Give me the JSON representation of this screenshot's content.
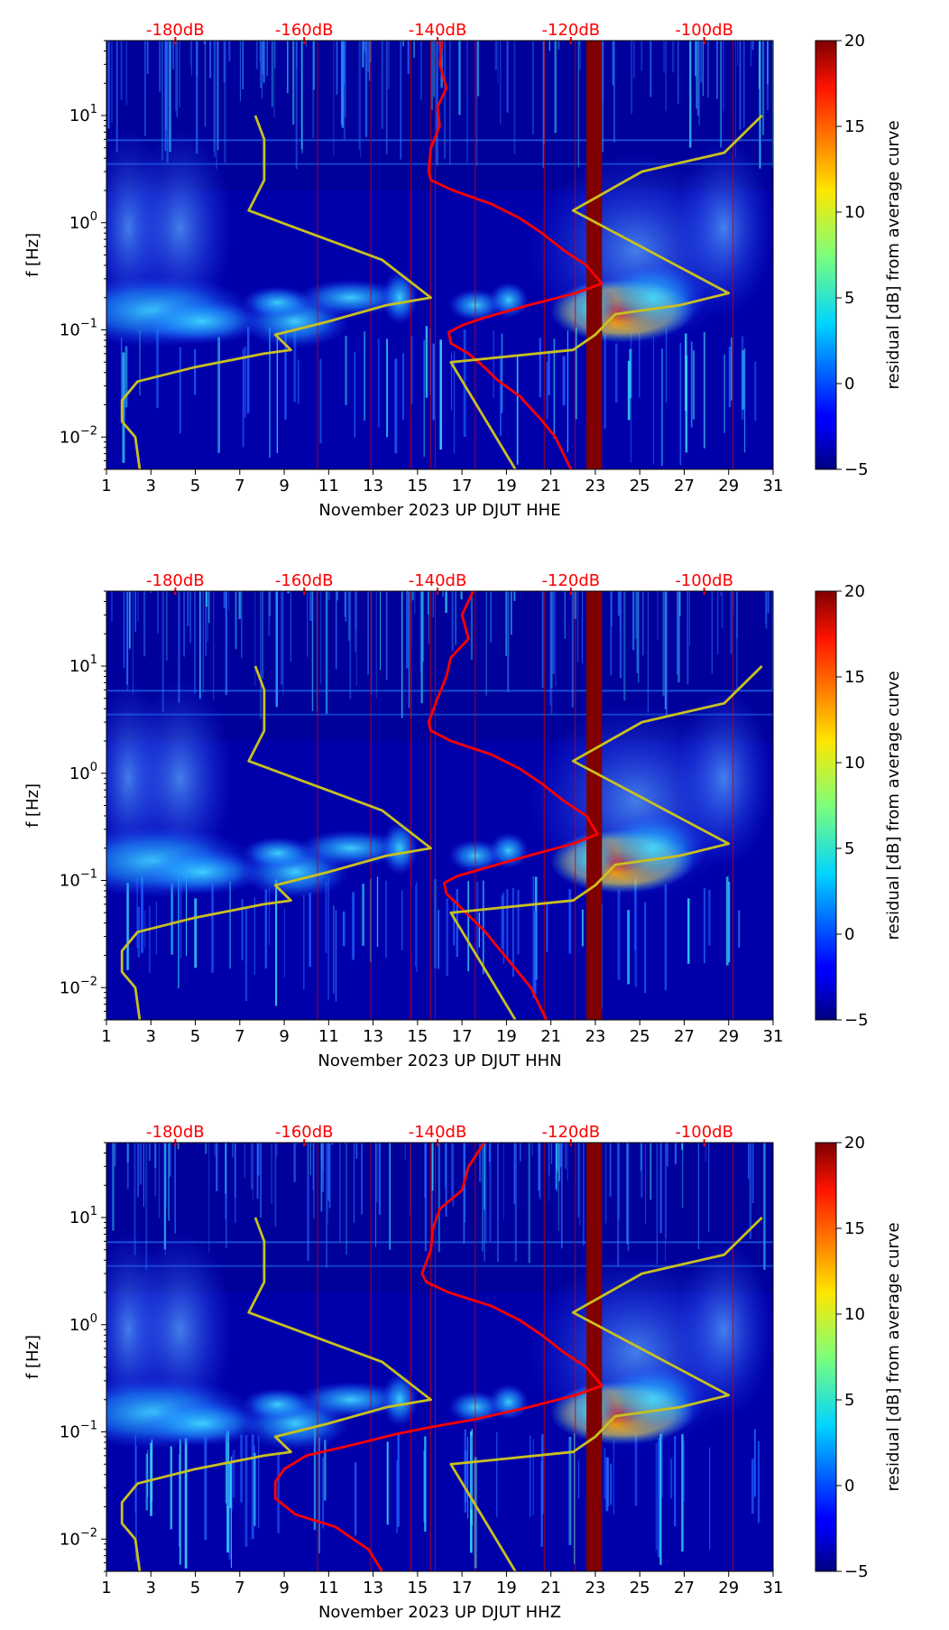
{
  "chart_data": [
    {
      "type": "heatmap",
      "title": "",
      "channel": "HHE",
      "xlabel": "November 2023 UP DJUT  HHE",
      "ylabel": "f [Hz]",
      "x_ticks": [
        "1",
        "3",
        "5",
        "7",
        "9",
        "11",
        "13",
        "15",
        "17",
        "19",
        "21",
        "23",
        "25",
        "27",
        "29",
        "31"
      ],
      "y_ticks": [
        {
          "value": 10,
          "label": "10",
          "exp": "1"
        },
        {
          "value": 1,
          "label": "10",
          "exp": "0"
        },
        {
          "value": 0.1,
          "label": "10",
          "exp": "−1"
        },
        {
          "value": 0.01,
          "label": "10",
          "exp": "−2"
        }
      ],
      "top_labels": [
        "-180dB",
        "-160dB",
        "-140dB",
        "-120dB",
        "-100dB"
      ],
      "top_label_positions": [
        4.1,
        9.9,
        15.9,
        21.9,
        27.9
      ],
      "xlim": [
        1,
        31
      ],
      "ylim": [
        0.005,
        50
      ],
      "colorbar": {
        "label": "residual [dB] from average curve",
        "ticks": [
          "−5",
          "0",
          "5",
          "10",
          "15",
          "20"
        ],
        "range": [
          -5,
          20
        ]
      },
      "dark_band_days": [
        22.6,
        23.3
      ],
      "red_line_days": [
        10.5,
        12.9,
        14.7,
        15.6,
        15.8,
        17.6,
        20.7,
        22.1,
        29.2
      ],
      "series": [
        {
          "name": "PSD curve",
          "color": "#ff0000",
          "points": [
            [
              16.1,
              50
            ],
            [
              16.0,
              30
            ],
            [
              16.3,
              18
            ],
            [
              15.9,
              12
            ],
            [
              16.0,
              8
            ],
            [
              15.6,
              5
            ],
            [
              15.5,
              3
            ],
            [
              15.6,
              2.5
            ],
            [
              16.6,
              2.0
            ],
            [
              18.3,
              1.5
            ],
            [
              19.6,
              1.1
            ],
            [
              20.6,
              0.8
            ],
            [
              21.6,
              0.55
            ],
            [
              22.6,
              0.4
            ],
            [
              23.3,
              0.27
            ],
            [
              22.1,
              0.22
            ],
            [
              20.0,
              0.17
            ],
            [
              18.0,
              0.13
            ],
            [
              17.0,
              0.11
            ],
            [
              16.4,
              0.095
            ],
            [
              16.5,
              0.075
            ],
            [
              17.3,
              0.06
            ],
            [
              18.0,
              0.045
            ],
            [
              18.6,
              0.034
            ],
            [
              19.6,
              0.024
            ],
            [
              20.5,
              0.015
            ],
            [
              21.2,
              0.01
            ],
            [
              21.9,
              0.005
            ]
          ]
        },
        {
          "name": "model curve",
          "color": "#c8c020",
          "points": [
            [
              7.7,
              10
            ],
            [
              8.1,
              6
            ],
            [
              8.1,
              2.5
            ],
            [
              7.4,
              1.3
            ],
            [
              13.4,
              0.45
            ],
            [
              15.6,
              0.2
            ],
            [
              13.6,
              0.17
            ],
            [
              11.0,
              0.12
            ],
            [
              8.6,
              0.09
            ],
            [
              9.3,
              0.065
            ],
            [
              8.1,
              0.06
            ],
            [
              5.0,
              0.045
            ],
            [
              2.4,
              0.033
            ],
            [
              1.7,
              0.022
            ],
            [
              1.7,
              0.014
            ],
            [
              2.3,
              0.01
            ],
            [
              2.5,
              0.005
            ]
          ]
        },
        {
          "name": "model curve 2",
          "color": "#c8c020",
          "points": [
            [
              30.5,
              10
            ],
            [
              28.8,
              4.5
            ],
            [
              25.1,
              3.0
            ],
            [
              22.0,
              1.3
            ],
            [
              29.0,
              0.22
            ],
            [
              26.8,
              0.17
            ],
            [
              23.9,
              0.14
            ],
            [
              23.0,
              0.09
            ],
            [
              22.0,
              0.065
            ],
            [
              16.5,
              0.05
            ],
            [
              19.4,
              0.005
            ]
          ]
        }
      ]
    },
    {
      "type": "heatmap",
      "title": "",
      "channel": "HHN",
      "xlabel": "November 2023 UP DJUT  HHN",
      "ylabel": "f [Hz]",
      "x_ticks": [
        "1",
        "3",
        "5",
        "7",
        "9",
        "11",
        "13",
        "15",
        "17",
        "19",
        "21",
        "23",
        "25",
        "27",
        "29",
        "31"
      ],
      "y_ticks": [
        {
          "value": 10,
          "label": "10",
          "exp": "1"
        },
        {
          "value": 1,
          "label": "10",
          "exp": "0"
        },
        {
          "value": 0.1,
          "label": "10",
          "exp": "−1"
        },
        {
          "value": 0.01,
          "label": "10",
          "exp": "−2"
        }
      ],
      "top_labels": [
        "-180dB",
        "-160dB",
        "-140dB",
        "-120dB",
        "-100dB"
      ],
      "top_label_positions": [
        4.1,
        9.9,
        15.9,
        21.9,
        27.9
      ],
      "xlim": [
        1,
        31
      ],
      "ylim": [
        0.005,
        50
      ],
      "colorbar": {
        "label": "residual [dB] from average curve",
        "ticks": [
          "−5",
          "0",
          "5",
          "10",
          "15",
          "20"
        ],
        "range": [
          -5,
          20
        ]
      },
      "dark_band_days": [
        22.6,
        23.3
      ],
      "red_line_days": [
        10.5,
        12.9,
        14.7,
        15.6,
        15.8,
        17.6,
        20.7,
        22.1,
        29.2
      ],
      "series": [
        {
          "name": "PSD curve",
          "color": "#ff0000",
          "points": [
            [
              17.5,
              50
            ],
            [
              17.0,
              30
            ],
            [
              17.3,
              18
            ],
            [
              16.5,
              12
            ],
            [
              16.3,
              8
            ],
            [
              15.9,
              5
            ],
            [
              15.5,
              3
            ],
            [
              15.6,
              2.5
            ],
            [
              16.5,
              2.0
            ],
            [
              18.3,
              1.5
            ],
            [
              19.6,
              1.1
            ],
            [
              20.6,
              0.8
            ],
            [
              21.6,
              0.55
            ],
            [
              22.6,
              0.4
            ],
            [
              23.1,
              0.27
            ],
            [
              22.0,
              0.22
            ],
            [
              20.0,
              0.17
            ],
            [
              18.0,
              0.13
            ],
            [
              16.8,
              0.11
            ],
            [
              16.2,
              0.095
            ],
            [
              16.3,
              0.075
            ],
            [
              16.8,
              0.06
            ],
            [
              17.4,
              0.045
            ],
            [
              18.0,
              0.034
            ],
            [
              18.6,
              0.024
            ],
            [
              19.4,
              0.015
            ],
            [
              20.1,
              0.01
            ],
            [
              20.8,
              0.005
            ]
          ]
        },
        {
          "name": "model curve",
          "color": "#c8c020",
          "points": [
            [
              7.7,
              10
            ],
            [
              8.1,
              6
            ],
            [
              8.1,
              2.5
            ],
            [
              7.4,
              1.3
            ],
            [
              13.4,
              0.45
            ],
            [
              15.6,
              0.2
            ],
            [
              13.6,
              0.17
            ],
            [
              11.0,
              0.12
            ],
            [
              8.6,
              0.09
            ],
            [
              9.3,
              0.065
            ],
            [
              8.1,
              0.06
            ],
            [
              5.0,
              0.045
            ],
            [
              2.4,
              0.033
            ],
            [
              1.7,
              0.022
            ],
            [
              1.7,
              0.014
            ],
            [
              2.3,
              0.01
            ],
            [
              2.5,
              0.005
            ]
          ]
        },
        {
          "name": "model curve 2",
          "color": "#c8c020",
          "points": [
            [
              30.5,
              10
            ],
            [
              28.8,
              4.5
            ],
            [
              25.1,
              3.0
            ],
            [
              22.0,
              1.3
            ],
            [
              29.0,
              0.22
            ],
            [
              26.8,
              0.17
            ],
            [
              23.9,
              0.14
            ],
            [
              23.0,
              0.09
            ],
            [
              22.0,
              0.065
            ],
            [
              16.5,
              0.05
            ],
            [
              19.4,
              0.005
            ]
          ]
        }
      ]
    },
    {
      "type": "heatmap",
      "title": "",
      "channel": "HHZ",
      "xlabel": "November 2023 UP DJUT  HHZ",
      "ylabel": "f [Hz]",
      "x_ticks": [
        "1",
        "3",
        "5",
        "7",
        "9",
        "11",
        "13",
        "15",
        "17",
        "19",
        "21",
        "23",
        "25",
        "27",
        "29",
        "31"
      ],
      "y_ticks": [
        {
          "value": 10,
          "label": "10",
          "exp": "1"
        },
        {
          "value": 1,
          "label": "10",
          "exp": "0"
        },
        {
          "value": 0.1,
          "label": "10",
          "exp": "−1"
        },
        {
          "value": 0.01,
          "label": "10",
          "exp": "−2"
        }
      ],
      "top_labels": [
        "-180dB",
        "-160dB",
        "-140dB",
        "-120dB",
        "-100dB"
      ],
      "top_label_positions": [
        4.1,
        9.9,
        15.9,
        21.9,
        27.9
      ],
      "xlim": [
        1,
        31
      ],
      "ylim": [
        0.005,
        50
      ],
      "colorbar": {
        "label": "residual [dB] from average curve",
        "ticks": [
          "−5",
          "0",
          "5",
          "10",
          "15",
          "20"
        ],
        "range": [
          -5,
          20
        ]
      },
      "dark_band_days": [
        22.6,
        23.3
      ],
      "red_line_days": [
        10.5,
        12.9,
        14.7,
        15.6,
        15.8,
        17.6,
        20.7,
        22.1,
        29.2
      ],
      "series": [
        {
          "name": "PSD curve",
          "color": "#ff0000",
          "points": [
            [
              18.0,
              50
            ],
            [
              17.3,
              30
            ],
            [
              17.0,
              18
            ],
            [
              16.0,
              12
            ],
            [
              15.7,
              8
            ],
            [
              15.6,
              5
            ],
            [
              15.2,
              3
            ],
            [
              15.4,
              2.5
            ],
            [
              16.4,
              2.0
            ],
            [
              18.3,
              1.5
            ],
            [
              19.6,
              1.1
            ],
            [
              20.6,
              0.8
            ],
            [
              21.6,
              0.55
            ],
            [
              22.6,
              0.4
            ],
            [
              23.3,
              0.27
            ],
            [
              22.1,
              0.22
            ],
            [
              20.0,
              0.17
            ],
            [
              17.5,
              0.13
            ],
            [
              15.5,
              0.11
            ],
            [
              14.0,
              0.095
            ],
            [
              12.0,
              0.075
            ],
            [
              10.0,
              0.06
            ],
            [
              9.0,
              0.045
            ],
            [
              8.6,
              0.034
            ],
            [
              8.6,
              0.024
            ],
            [
              9.5,
              0.017
            ],
            [
              11.3,
              0.013
            ],
            [
              12.8,
              0.008
            ],
            [
              13.4,
              0.005
            ]
          ]
        },
        {
          "name": "model curve",
          "color": "#c8c020",
          "points": [
            [
              7.7,
              10
            ],
            [
              8.1,
              6
            ],
            [
              8.1,
              2.5
            ],
            [
              7.4,
              1.3
            ],
            [
              13.4,
              0.45
            ],
            [
              15.6,
              0.2
            ],
            [
              13.6,
              0.17
            ],
            [
              11.0,
              0.12
            ],
            [
              8.6,
              0.09
            ],
            [
              9.3,
              0.065
            ],
            [
              8.1,
              0.06
            ],
            [
              5.0,
              0.045
            ],
            [
              2.4,
              0.033
            ],
            [
              1.7,
              0.022
            ],
            [
              1.7,
              0.014
            ],
            [
              2.3,
              0.01
            ],
            [
              2.5,
              0.005
            ]
          ]
        },
        {
          "name": "model curve 2",
          "color": "#c8c020",
          "points": [
            [
              30.5,
              10
            ],
            [
              28.8,
              4.5
            ],
            [
              25.1,
              3.0
            ],
            [
              22.0,
              1.3
            ],
            [
              29.0,
              0.22
            ],
            [
              26.8,
              0.17
            ],
            [
              23.9,
              0.14
            ],
            [
              23.0,
              0.09
            ],
            [
              22.0,
              0.065
            ],
            [
              16.5,
              0.05
            ],
            [
              19.4,
              0.005
            ]
          ]
        }
      ]
    }
  ]
}
